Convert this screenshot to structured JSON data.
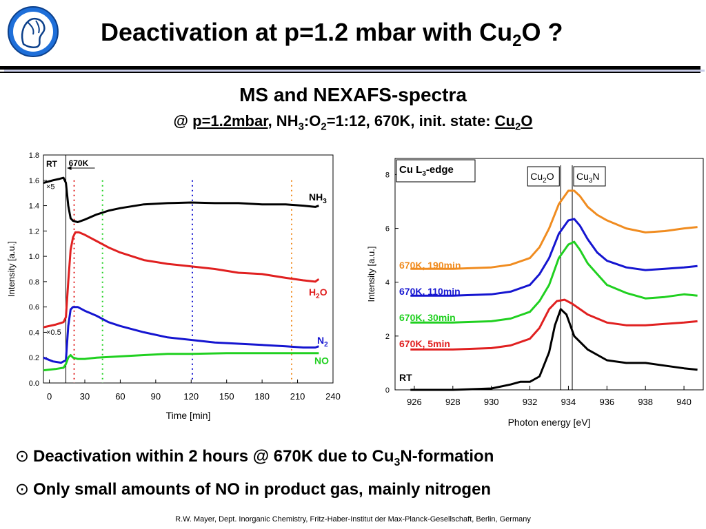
{
  "header": {
    "title_pre": "Deactivation at p=1.2 mbar with Cu",
    "title_sub": "2",
    "title_post": "O ?"
  },
  "subtitle": "MS and NEXAFS-spectra",
  "subline": {
    "at": "@ ",
    "pressure": "p=1.2mbar",
    "gas_pre": ", NH",
    "gas_s1": "3",
    "gas_mid": ":O",
    "gas_s2": "2",
    "gas_post": "=1:12, 670K, init. state: ",
    "state_pre": "Cu",
    "state_sub": "2",
    "state_post": "O"
  },
  "chart_data": [
    {
      "type": "line",
      "xlabel": "Time [min]",
      "ylabel": "Intensity [a.u.]",
      "xlim": [
        -5,
        240
      ],
      "ylim": [
        0,
        1.8
      ],
      "xticks": [
        "0",
        "30",
        "60",
        "90",
        "120",
        "150",
        "180",
        "210",
        "240"
      ],
      "yticks": [
        "0.0",
        "0.2",
        "0.4",
        "0.6",
        "0.8",
        "1.0",
        "1.2",
        "1.4",
        "1.6",
        "1.8"
      ],
      "annotations": {
        "rt": "RT",
        "hot": "670K",
        "scale5": "×5",
        "scale05": "×0.5"
      },
      "separator_x": 14,
      "marker_lines": [
        {
          "x": 21,
          "color": "#e02020"
        },
        {
          "x": 45,
          "color": "#20d020"
        },
        {
          "x": 121,
          "color": "#1515d0"
        },
        {
          "x": 205,
          "color": "#f08c20"
        }
      ],
      "series": [
        {
          "name_main": "NH",
          "name_sub": "3",
          "color": "#000000",
          "x": [
            -5,
            3,
            8,
            12,
            14,
            16,
            18,
            20,
            24,
            30,
            40,
            50,
            60,
            80,
            100,
            120,
            140,
            160,
            180,
            200,
            215,
            225,
            228
          ],
          "y": [
            1.58,
            1.6,
            1.61,
            1.62,
            1.58,
            1.4,
            1.3,
            1.28,
            1.27,
            1.29,
            1.33,
            1.36,
            1.38,
            1.41,
            1.42,
            1.425,
            1.42,
            1.42,
            1.41,
            1.41,
            1.4,
            1.39,
            1.4
          ]
        },
        {
          "name_main": "H",
          "name_sub": "2",
          "name_post": "O",
          "color": "#e02020",
          "x": [
            -5,
            5,
            12,
            14,
            16,
            18,
            20,
            22,
            25,
            30,
            40,
            50,
            60,
            80,
            100,
            120,
            140,
            160,
            180,
            200,
            215,
            225,
            228
          ],
          "y": [
            0.44,
            0.46,
            0.48,
            0.52,
            0.8,
            1.05,
            1.15,
            1.19,
            1.19,
            1.17,
            1.12,
            1.07,
            1.03,
            0.97,
            0.94,
            0.92,
            0.9,
            0.87,
            0.86,
            0.83,
            0.81,
            0.8,
            0.82
          ]
        },
        {
          "name_main": "N",
          "name_sub": "2",
          "color": "#1515d0",
          "x": [
            -5,
            3,
            10,
            14,
            16,
            18,
            20,
            24,
            30,
            40,
            50,
            60,
            80,
            100,
            120,
            140,
            160,
            180,
            200,
            215,
            225,
            228
          ],
          "y": [
            0.2,
            0.17,
            0.16,
            0.18,
            0.45,
            0.58,
            0.6,
            0.6,
            0.57,
            0.53,
            0.48,
            0.45,
            0.4,
            0.36,
            0.34,
            0.32,
            0.31,
            0.3,
            0.29,
            0.28,
            0.28,
            0.29
          ]
        },
        {
          "name_main": "NO",
          "color": "#20d020",
          "x": [
            -5,
            5,
            12,
            14,
            16,
            18,
            20,
            24,
            30,
            40,
            60,
            80,
            100,
            120,
            150,
            180,
            210,
            228
          ],
          "y": [
            0.1,
            0.11,
            0.12,
            0.15,
            0.2,
            0.22,
            0.2,
            0.19,
            0.19,
            0.2,
            0.21,
            0.22,
            0.23,
            0.23,
            0.235,
            0.235,
            0.235,
            0.235
          ]
        }
      ]
    },
    {
      "type": "line",
      "xlabel": "Photon energy [eV]",
      "ylabel": "Intensity [a.u.]",
      "xlim": [
        925,
        941
      ],
      "ylim": [
        0,
        8.6
      ],
      "xticks": [
        "926",
        "928",
        "930",
        "932",
        "934",
        "936",
        "938",
        "940"
      ],
      "yticks": [
        "0",
        "2",
        "4",
        "6",
        "8"
      ],
      "legend_box": {
        "pre": "Cu L",
        "sub": "3",
        "post": "-edge"
      },
      "reference_lines": [
        {
          "x": 933.6,
          "label_pre": "Cu",
          "label_sub": "2",
          "label_post": "O"
        },
        {
          "x": 934.2,
          "label_pre": "Cu",
          "label_sub": "3",
          "label_post": "N"
        }
      ],
      "series": [
        {
          "name": "RT",
          "color": "#000000",
          "x": [
            925.8,
            928,
            930,
            931,
            931.5,
            932,
            932.5,
            933,
            933.3,
            933.6,
            933.9,
            934.3,
            935,
            936,
            937,
            938,
            939,
            940,
            940.7
          ],
          "y": [
            0.0,
            0.0,
            0.05,
            0.2,
            0.3,
            0.3,
            0.5,
            1.4,
            2.4,
            3.0,
            2.8,
            2.0,
            1.5,
            1.1,
            1.0,
            1.0,
            0.9,
            0.8,
            0.75
          ]
        },
        {
          "name": "670K, 5min",
          "color": "#e02020",
          "x": [
            925.8,
            928,
            930,
            931,
            932,
            932.5,
            933,
            933.4,
            933.8,
            934.2,
            935,
            936,
            937,
            938,
            939,
            940,
            940.7
          ],
          "y": [
            1.5,
            1.5,
            1.55,
            1.65,
            1.9,
            2.3,
            3.0,
            3.3,
            3.35,
            3.2,
            2.8,
            2.5,
            2.4,
            2.4,
            2.45,
            2.5,
            2.55
          ]
        },
        {
          "name": "670K, 30min",
          "color": "#20d020",
          "x": [
            925.8,
            928,
            930,
            931,
            932,
            932.5,
            933,
            933.5,
            934,
            934.3,
            934.6,
            935,
            935.5,
            936,
            937,
            938,
            939,
            940,
            940.7
          ],
          "y": [
            2.5,
            2.5,
            2.55,
            2.65,
            2.9,
            3.3,
            3.9,
            4.9,
            5.4,
            5.5,
            5.2,
            4.7,
            4.3,
            3.9,
            3.6,
            3.4,
            3.45,
            3.55,
            3.5
          ]
        },
        {
          "name": "670K, 110min",
          "color": "#1515d0",
          "x": [
            925.8,
            928,
            930,
            931,
            932,
            932.5,
            933,
            933.5,
            934,
            934.3,
            934.6,
            935,
            935.5,
            936,
            937,
            938,
            939,
            940,
            940.7
          ],
          "y": [
            3.5,
            3.5,
            3.55,
            3.65,
            3.9,
            4.3,
            4.9,
            5.8,
            6.3,
            6.35,
            6.1,
            5.6,
            5.1,
            4.8,
            4.55,
            4.45,
            4.5,
            4.55,
            4.6
          ]
        },
        {
          "name": "670K, 190min",
          "color": "#f08c20",
          "x": [
            925.8,
            928,
            930,
            931,
            932,
            932.5,
            933,
            933.5,
            934,
            934.3,
            934.6,
            935,
            935.5,
            936,
            937,
            938,
            939,
            940,
            940.7
          ],
          "y": [
            4.5,
            4.5,
            4.55,
            4.65,
            4.9,
            5.3,
            6.0,
            6.9,
            7.4,
            7.4,
            7.2,
            6.8,
            6.5,
            6.3,
            6.0,
            5.85,
            5.9,
            6.0,
            6.05
          ]
        }
      ]
    }
  ],
  "bullets": [
    {
      "symbol": "⊙",
      "pre": "Deactivation within 2 hours @ 670K due to Cu",
      "sub": "3",
      "post": "N-formation"
    },
    {
      "symbol": "⊙",
      "pre": "Only small amounts of NO in product gas, mainly nitrogen",
      "sub": "",
      "post": ""
    }
  ],
  "footer": "R.W. Mayer, Dept. Inorganic Chemistry, Fritz-Haber-Institut der Max-Planck-Gesellschaft, Berlin, Germany",
  "colors": {
    "accent": "#1565c0"
  }
}
